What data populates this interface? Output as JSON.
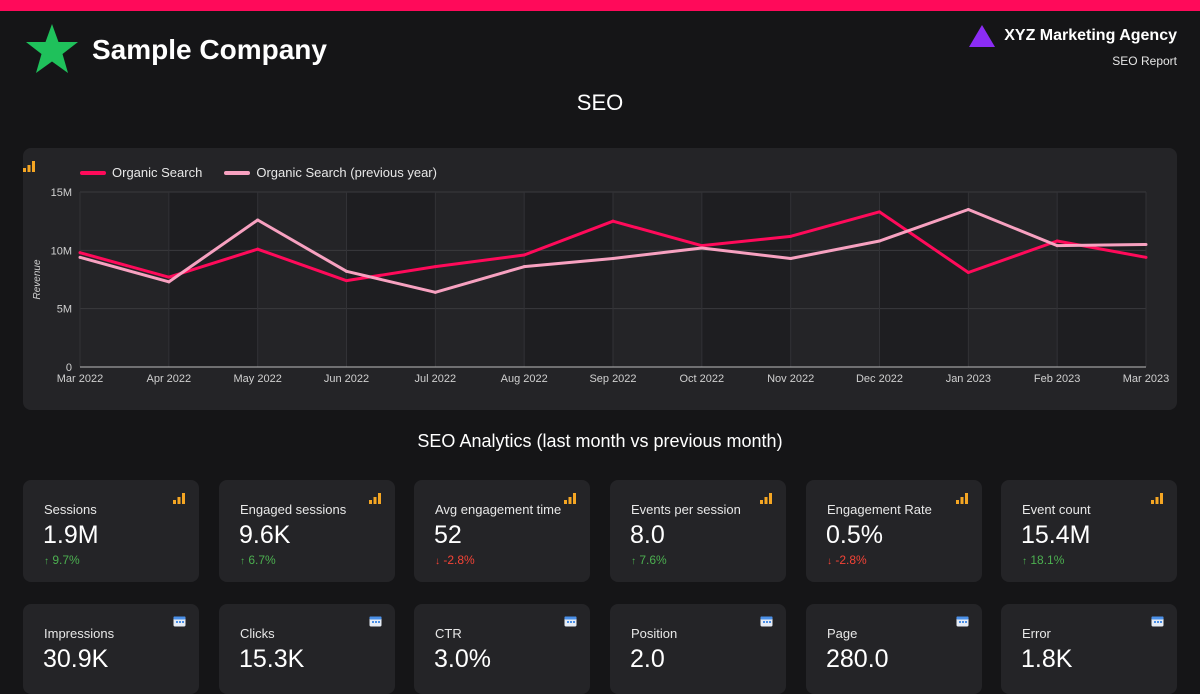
{
  "header": {
    "company": "Sample Company",
    "agency": "XYZ Marketing Agency",
    "report": "SEO Report",
    "accent_color": "#ff0a5a",
    "logo_color": "#1fc15b",
    "agency_logo_color": "#8b2cf5"
  },
  "seo_title": "SEO",
  "analytics_title": "SEO Analytics (last month vs previous month)",
  "chart_data": {
    "type": "line",
    "ylabel": "Revenue",
    "x": [
      "Mar 2022",
      "Apr 2022",
      "May 2022",
      "Jun 2022",
      "Jul 2022",
      "Aug 2022",
      "Sep 2022",
      "Oct 2022",
      "Nov 2022",
      "Dec 2022",
      "Jan 2023",
      "Feb 2023",
      "Mar 2023"
    ],
    "y_ticks": [
      "0",
      "5M",
      "10M",
      "15M"
    ],
    "ylim": [
      0,
      15
    ],
    "legend_position": "top-left",
    "series": [
      {
        "name": "Organic Search",
        "color": "#ff0a5a",
        "values": [
          9.8,
          7.7,
          10.1,
          7.4,
          8.6,
          9.6,
          12.5,
          10.4,
          11.2,
          13.3,
          8.1,
          10.8,
          9.4
        ]
      },
      {
        "name": "Organic Search (previous year)",
        "color": "#f7a1c0",
        "values": [
          9.4,
          7.3,
          12.6,
          8.2,
          6.4,
          8.6,
          9.3,
          10.2,
          9.3,
          10.8,
          13.5,
          10.4,
          10.5
        ]
      }
    ]
  },
  "kpis_row1": [
    {
      "label": "Sessions",
      "value": "1.9M",
      "delta": "9.7%",
      "trend": "up"
    },
    {
      "label": "Engaged sessions",
      "value": "9.6K",
      "delta": "6.7%",
      "trend": "up"
    },
    {
      "label": "Avg engagement time",
      "value": "52",
      "delta": "-2.8%",
      "trend": "down"
    },
    {
      "label": "Events per session",
      "value": "8.0",
      "delta": "7.6%",
      "trend": "up"
    },
    {
      "label": "Engagement Rate",
      "value": "0.5%",
      "delta": "-2.8%",
      "trend": "down"
    },
    {
      "label": "Event count",
      "value": "15.4M",
      "delta": "18.1%",
      "trend": "up"
    }
  ],
  "kpis_row2": [
    {
      "label": "Impressions",
      "value": "30.9K"
    },
    {
      "label": "Clicks",
      "value": "15.3K"
    },
    {
      "label": "CTR",
      "value": "3.0%"
    },
    {
      "label": "Position",
      "value": "2.0"
    },
    {
      "label": "Page",
      "value": "280.0"
    },
    {
      "label": "Error",
      "value": "1.8K"
    }
  ]
}
